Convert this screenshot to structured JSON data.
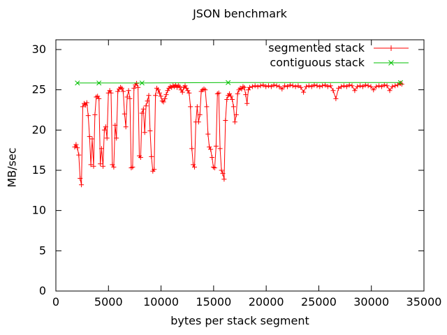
{
  "window": {
    "background": "#ffffff"
  },
  "chart_data": {
    "type": "line",
    "title": "JSON benchmark",
    "xlabel": "bytes per stack segment",
    "ylabel": "MB/sec",
    "xlim": [
      0,
      35000
    ],
    "ylim": [
      0,
      30
    ],
    "xticks": [
      0,
      5000,
      10000,
      15000,
      20000,
      25000,
      30000,
      35000
    ],
    "yticks": [
      0,
      5,
      10,
      15,
      20,
      25,
      30
    ],
    "grid": false,
    "legend_position": "top-right-inside",
    "axis_color": "#000000",
    "series": [
      {
        "name": "segmented stack",
        "color": "#ff0000",
        "marker": "plus",
        "points": [
          [
            1792,
            17.9
          ],
          [
            1920,
            18.2
          ],
          [
            2048,
            17.8
          ],
          [
            2176,
            16.9
          ],
          [
            2304,
            14.0
          ],
          [
            2432,
            13.2
          ],
          [
            2560,
            22.9
          ],
          [
            2688,
            23.3
          ],
          [
            2816,
            23.1
          ],
          [
            2944,
            23.4
          ],
          [
            3072,
            21.8
          ],
          [
            3200,
            19.2
          ],
          [
            3328,
            15.7
          ],
          [
            3456,
            18.9
          ],
          [
            3584,
            15.5
          ],
          [
            3712,
            21.9
          ],
          [
            3840,
            24.1
          ],
          [
            3968,
            24.2
          ],
          [
            4096,
            23.9
          ],
          [
            4224,
            15.8
          ],
          [
            4352,
            17.7
          ],
          [
            4480,
            15.5
          ],
          [
            4608,
            20.0
          ],
          [
            4736,
            20.4
          ],
          [
            4864,
            19.0
          ],
          [
            4992,
            24.6
          ],
          [
            5120,
            24.9
          ],
          [
            5248,
            24.6
          ],
          [
            5376,
            15.7
          ],
          [
            5504,
            15.4
          ],
          [
            5632,
            20.6
          ],
          [
            5760,
            19.0
          ],
          [
            5888,
            24.8
          ],
          [
            6016,
            25.1
          ],
          [
            6144,
            25.3
          ],
          [
            6272,
            25.2
          ],
          [
            6400,
            24.8
          ],
          [
            6528,
            22.0
          ],
          [
            6656,
            20.4
          ],
          [
            6784,
            24.1
          ],
          [
            6912,
            24.9
          ],
          [
            7040,
            23.9
          ],
          [
            7168,
            15.3
          ],
          [
            7296,
            15.4
          ],
          [
            7424,
            25.2
          ],
          [
            7552,
            25.6
          ],
          [
            7680,
            25.8
          ],
          [
            7808,
            25.3
          ],
          [
            7936,
            16.8
          ],
          [
            8064,
            16.6
          ],
          [
            8192,
            22.1
          ],
          [
            8320,
            22.6
          ],
          [
            8448,
            19.7
          ],
          [
            8576,
            23.0
          ],
          [
            8704,
            23.6
          ],
          [
            8832,
            24.3
          ],
          [
            8960,
            19.9
          ],
          [
            9088,
            16.7
          ],
          [
            9216,
            14.9
          ],
          [
            9344,
            15.1
          ],
          [
            9472,
            24.3
          ],
          [
            9600,
            25.2
          ],
          [
            9728,
            25.0
          ],
          [
            9856,
            24.6
          ],
          [
            9984,
            24.2
          ],
          [
            10112,
            23.6
          ],
          [
            10240,
            23.5
          ],
          [
            10368,
            23.9
          ],
          [
            10496,
            24.4
          ],
          [
            10624,
            24.9
          ],
          [
            10752,
            25.2
          ],
          [
            10880,
            25.4
          ],
          [
            11008,
            25.3
          ],
          [
            11136,
            25.5
          ],
          [
            11264,
            25.4
          ],
          [
            11392,
            25.6
          ],
          [
            11520,
            25.3
          ],
          [
            11648,
            25.5
          ],
          [
            11776,
            25.4
          ],
          [
            11904,
            25.0
          ],
          [
            12032,
            24.7
          ],
          [
            12160,
            25.3
          ],
          [
            12288,
            25.5
          ],
          [
            12416,
            25.2
          ],
          [
            12544,
            24.9
          ],
          [
            12672,
            24.6
          ],
          [
            12800,
            22.9
          ],
          [
            12928,
            17.7
          ],
          [
            13056,
            15.7
          ],
          [
            13184,
            15.4
          ],
          [
            13312,
            21.0
          ],
          [
            13440,
            22.9
          ],
          [
            13568,
            21.0
          ],
          [
            13696,
            21.9
          ],
          [
            13824,
            24.8
          ],
          [
            13952,
            25.0
          ],
          [
            14080,
            25.1
          ],
          [
            14208,
            25.0
          ],
          [
            14336,
            22.9
          ],
          [
            14464,
            19.5
          ],
          [
            14592,
            17.9
          ],
          [
            14720,
            17.6
          ],
          [
            14848,
            16.6
          ],
          [
            14976,
            15.4
          ],
          [
            15104,
            15.3
          ],
          [
            15232,
            18.0
          ],
          [
            15360,
            24.5
          ],
          [
            15488,
            24.6
          ],
          [
            15616,
            17.7
          ],
          [
            15744,
            15.0
          ],
          [
            15872,
            14.6
          ],
          [
            16000,
            13.9
          ],
          [
            16128,
            21.2
          ],
          [
            16256,
            23.8
          ],
          [
            16384,
            24.3
          ],
          [
            16512,
            24.5
          ],
          [
            16640,
            24.2
          ],
          [
            16768,
            23.8
          ],
          [
            16896,
            22.9
          ],
          [
            17024,
            21.0
          ],
          [
            17152,
            21.9
          ],
          [
            17280,
            24.5
          ],
          [
            17408,
            25.0
          ],
          [
            17536,
            25.2
          ],
          [
            17664,
            25.1
          ],
          [
            17792,
            25.4
          ],
          [
            17920,
            25.3
          ],
          [
            18048,
            24.4
          ],
          [
            18176,
            23.3
          ],
          [
            18304,
            25.0
          ],
          [
            18432,
            25.3
          ],
          [
            18688,
            25.4
          ],
          [
            18944,
            25.5
          ],
          [
            19200,
            25.4
          ],
          [
            19456,
            25.5
          ],
          [
            19712,
            25.6
          ],
          [
            19968,
            25.4
          ],
          [
            20224,
            25.5
          ],
          [
            20480,
            25.4
          ],
          [
            20736,
            25.6
          ],
          [
            20992,
            25.5
          ],
          [
            21248,
            25.4
          ],
          [
            21504,
            25.1
          ],
          [
            21760,
            25.5
          ],
          [
            22016,
            25.4
          ],
          [
            22272,
            25.6
          ],
          [
            22528,
            25.5
          ],
          [
            22784,
            25.4
          ],
          [
            23040,
            25.5
          ],
          [
            23296,
            25.3
          ],
          [
            23552,
            24.7
          ],
          [
            23808,
            25.4
          ],
          [
            24064,
            25.5
          ],
          [
            24320,
            25.4
          ],
          [
            24576,
            25.6
          ],
          [
            24832,
            25.5
          ],
          [
            25088,
            25.4
          ],
          [
            25344,
            25.5
          ],
          [
            25600,
            25.6
          ],
          [
            25856,
            25.4
          ],
          [
            26112,
            25.5
          ],
          [
            26368,
            24.9
          ],
          [
            26624,
            23.9
          ],
          [
            26880,
            25.2
          ],
          [
            27136,
            25.4
          ],
          [
            27392,
            25.5
          ],
          [
            27648,
            25.4
          ],
          [
            27904,
            25.6
          ],
          [
            28160,
            25.5
          ],
          [
            28416,
            24.9
          ],
          [
            28672,
            25.4
          ],
          [
            28928,
            25.5
          ],
          [
            29184,
            25.4
          ],
          [
            29440,
            25.6
          ],
          [
            29696,
            25.5
          ],
          [
            29952,
            25.4
          ],
          [
            30208,
            25.0
          ],
          [
            30464,
            25.4
          ],
          [
            30720,
            25.5
          ],
          [
            30976,
            25.4
          ],
          [
            31232,
            25.6
          ],
          [
            31488,
            25.5
          ],
          [
            31744,
            24.9
          ],
          [
            32000,
            25.4
          ],
          [
            32256,
            25.5
          ],
          [
            32512,
            25.6
          ],
          [
            32768,
            25.8
          ],
          [
            32896,
            25.7
          ]
        ]
      },
      {
        "name": "contiguous stack",
        "color": "#00c000",
        "marker": "cross",
        "points": [
          [
            2048,
            25.85
          ],
          [
            4096,
            25.85
          ],
          [
            8192,
            25.85
          ],
          [
            16384,
            25.9
          ],
          [
            32768,
            25.9
          ]
        ]
      }
    ]
  }
}
